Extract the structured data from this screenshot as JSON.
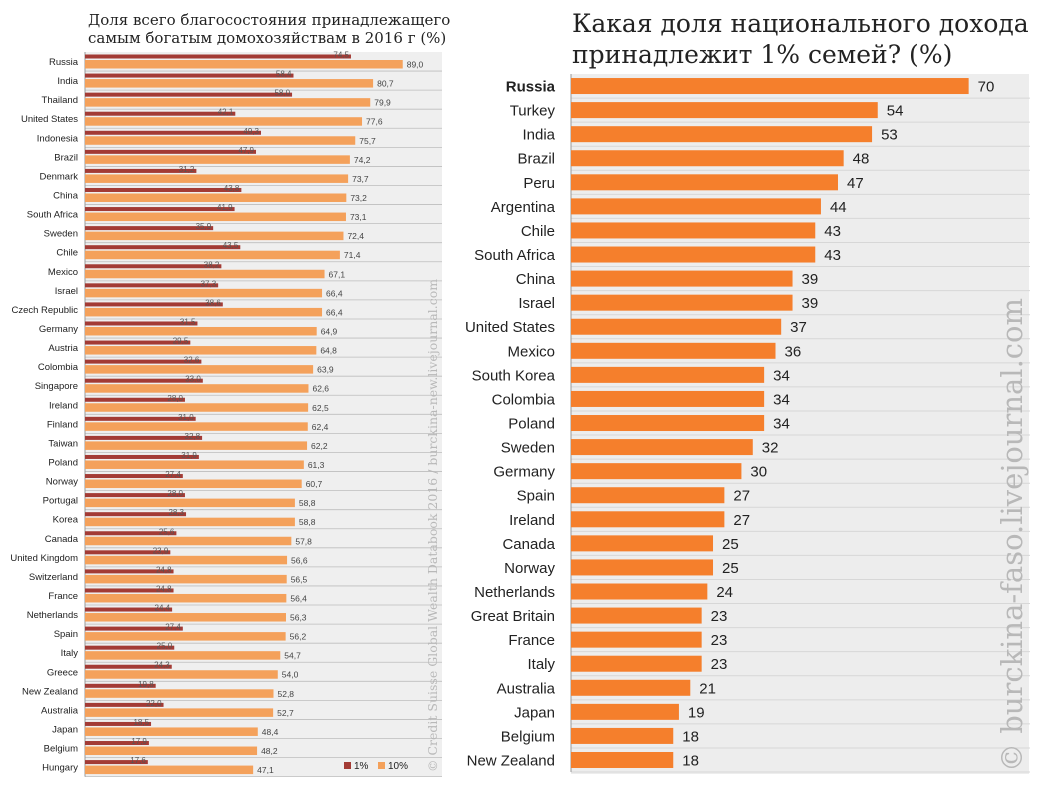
{
  "colors": {
    "dark_red": "#a33b35",
    "orange": "#f4a15b",
    "orange_right": "#f57f2c",
    "grid": "#bdbdbd",
    "left_bg": "#efefef",
    "watermark": "#b8b8b8"
  },
  "chart_data": [
    {
      "type": "bar",
      "orientation": "horizontal",
      "title": "Доля всего благосостояния принадлежащего самым богатым домохозяйствам в 2016 г (%)",
      "title_lines": [
        "Доля всего благосостояния принадлежащего",
        "самым богатым домохозяйствам в 2016 г (%)"
      ],
      "categories": [
        "Russia",
        "India",
        "Thailand",
        "United States",
        "Indonesia",
        "Brazil",
        "Denmark",
        "China",
        "South Africa",
        "Sweden",
        "Chile",
        "Mexico",
        "Israel",
        "Czech Republic",
        "Germany",
        "Austria",
        "Colombia",
        "Singapore",
        "Ireland",
        "Finland",
        "Taiwan",
        "Poland",
        "Norway",
        "Portugal",
        "Korea",
        "Canada",
        "United Kingdom",
        "Switzerland",
        "France",
        "Netherlands",
        "Spain",
        "Italy",
        "Greece",
        "New Zealand",
        "Australia",
        "Japan",
        "Belgium",
        "Hungary"
      ],
      "series": [
        {
          "name": "1%",
          "values": [
            74.5,
            58.4,
            58.0,
            42.1,
            49.3,
            47.9,
            31.2,
            43.8,
            41.9,
            35.9,
            43.5,
            38.2,
            37.3,
            38.6,
            31.5,
            29.5,
            32.6,
            33.0,
            28.0,
            31.0,
            32.8,
            31.9,
            27.4,
            28.0,
            28.3,
            25.6,
            23.9,
            24.8,
            24.8,
            24.4,
            27.4,
            25.0,
            24.3,
            19.8,
            22.0,
            18.5,
            17.9,
            17.6
          ],
          "labels": [
            "74,5",
            "58,4",
            "58,0",
            "42,1",
            "49,3",
            "47,9",
            "31,2",
            "43,8",
            "41,9",
            "35,9",
            "43,5",
            "38,2",
            "37,3",
            "38,6",
            "31,5",
            "29,5",
            "32,6",
            "33,0",
            "28,0",
            "31,0",
            "32,8",
            "31,9",
            "27,4",
            "28,0",
            "28,3",
            "25,6",
            "23,9",
            "24,8",
            "24,8",
            "24,4",
            "27,4",
            "25,0",
            "24,3",
            "19,8",
            "22,0",
            "18,5",
            "17,9",
            "17,6"
          ]
        },
        {
          "name": "10%",
          "values": [
            89.0,
            80.7,
            79.9,
            77.6,
            75.7,
            74.2,
            73.7,
            73.2,
            73.1,
            72.4,
            71.4,
            67.1,
            66.4,
            66.4,
            64.9,
            64.8,
            63.9,
            62.6,
            62.5,
            62.4,
            62.2,
            61.3,
            60.7,
            58.8,
            58.8,
            57.8,
            56.6,
            56.5,
            56.4,
            56.3,
            56.2,
            54.7,
            54.0,
            52.8,
            52.7,
            48.4,
            48.2,
            47.1
          ],
          "labels": [
            "89,0",
            "80,7",
            "79,9",
            "77,6",
            "75,7",
            "74,2",
            "73,7",
            "73,2",
            "73,1",
            "72,4",
            "71,4",
            "67,1",
            "66,4",
            "66,4",
            "64,9",
            "64,8",
            "63,9",
            "62,6",
            "62,5",
            "62,4",
            "62,2",
            "61,3",
            "60,7",
            "58,8",
            "58,8",
            "57,8",
            "56,6",
            "56,5",
            "56,4",
            "56,3",
            "56,2",
            "54,7",
            "54,0",
            "52,8",
            "52,7",
            "48,4",
            "48,2",
            "47,1"
          ]
        }
      ],
      "legend_position": "bottom-right",
      "grid": true,
      "xlim": [
        0,
        100
      ]
    },
    {
      "type": "bar",
      "orientation": "horizontal",
      "title": "Какая доля национального дохода принадлежит 1% семей? (%)",
      "title_lines": [
        "Какая доля национального дохода",
        "принадлежит 1% семей? (%)"
      ],
      "categories": [
        "Russia",
        "Turkey",
        "India",
        "Brazil",
        "Peru",
        "Argentina",
        "Chile",
        "South Africa",
        "China",
        "Israel",
        "United States",
        "Mexico",
        "South Korea",
        "Colombia",
        "Poland",
        "Sweden",
        "Germany",
        "Spain",
        "Ireland",
        "Canada",
        "Norway",
        "Netherlands",
        "Great Britain",
        "France",
        "Italy",
        "Australia",
        "Japan",
        "Belgium",
        "New Zealand"
      ],
      "values": [
        70,
        54,
        53,
        48,
        47,
        44,
        43,
        43,
        39,
        39,
        37,
        36,
        34,
        34,
        34,
        32,
        30,
        27,
        27,
        25,
        25,
        24,
        23,
        23,
        23,
        21,
        19,
        18,
        18
      ],
      "highlight": "Russia",
      "grid": true,
      "xlim": [
        0,
        72
      ]
    }
  ],
  "watermarks": {
    "left": "© Credit Suisse Global Wealth Databook 2016 / burckina-new.livejournal.com",
    "right": "© burckina-faso.livejournal.com"
  }
}
